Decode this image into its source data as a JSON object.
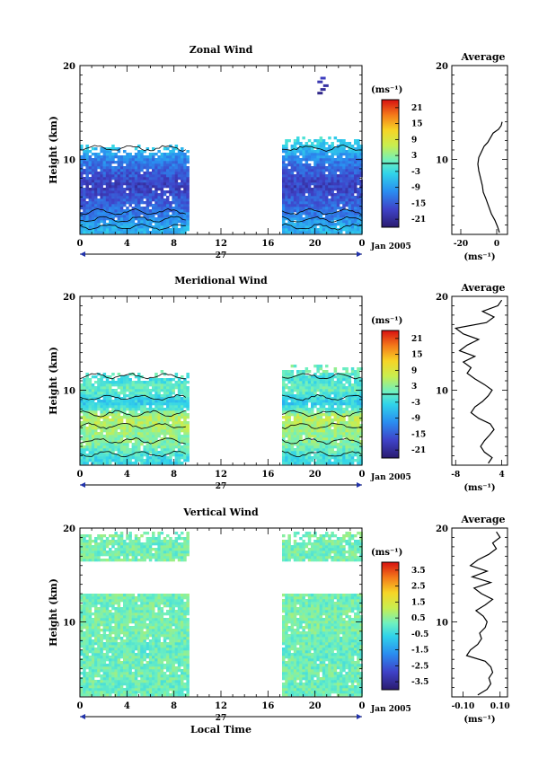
{
  "chart_data": [
    {
      "type": "heatmap",
      "title": "Zonal Wind",
      "ylabel": "Height (km)",
      "ylim": [
        2,
        20
      ],
      "y_ticks": [
        "10",
        "20"
      ],
      "xlim": [
        0,
        24
      ],
      "x_ticks": [
        "0",
        "4",
        "8",
        "12",
        "16",
        "20",
        "0"
      ],
      "x_day_label": "27",
      "x_month_label": "Jan 2005",
      "data_windows": [
        {
          "t_start": 0,
          "t_end": 9.2,
          "h_min": 2.1,
          "h_max": 11.6
        },
        {
          "t_start": 17.2,
          "t_end": 24,
          "h_min": 2.1,
          "h_max": 12.4
        }
      ],
      "mean_profile": {
        "heights": [
          2.5,
          4,
          5.5,
          7,
          8.5,
          10,
          11,
          12
        ],
        "values": [
          -7,
          -12,
          -15,
          -18,
          -15,
          -11,
          -6,
          -3
        ]
      },
      "colorbar": {
        "unit": "(ms⁻¹)",
        "labels": [
          "21",
          "15",
          "9",
          "3",
          "-3",
          "-9",
          "-15",
          "-21"
        ],
        "min": -24,
        "max": 24,
        "marker_value": 0
      },
      "average_profile": {
        "title": "Average",
        "xlabel": "(ms⁻¹)",
        "x_ticks": [
          "-20",
          "0"
        ],
        "xlim": [
          -25,
          6
        ],
        "y_ticks": [
          "10",
          "20"
        ],
        "heights": [
          2.2,
          2.8,
          3.5,
          4.2,
          5,
          5.8,
          6.5,
          7.2,
          8,
          8.8,
          9.5,
          10.2,
          10.8,
          11.4,
          11.8,
          12.3,
          12.8,
          13.2,
          13.6,
          14
        ],
        "values": [
          1.5,
          0.5,
          -1,
          -3,
          -4.5,
          -6,
          -7.5,
          -8,
          -9,
          -10,
          -10.5,
          -10,
          -8.5,
          -7,
          -5,
          -3.5,
          -2,
          1,
          2.5,
          3
        ]
      },
      "upper_fragment": {
        "heights": [
          17.2,
          17.6,
          18,
          18.4,
          18.8
        ],
        "values": [
          -22,
          -21,
          -20,
          -19,
          -18
        ]
      }
    },
    {
      "type": "heatmap",
      "title": "Meridional Wind",
      "ylabel": "Height (km)",
      "ylim": [
        2,
        20
      ],
      "y_ticks": [
        "10",
        "20"
      ],
      "xlim": [
        0,
        24
      ],
      "x_ticks": [
        "0",
        "4",
        "8",
        "12",
        "16",
        "20",
        "0"
      ],
      "x_day_label": "27",
      "x_month_label": "Jan 2005",
      "data_windows": [
        {
          "t_start": 0,
          "t_end": 9.2,
          "h_min": 2.1,
          "h_max": 12.0
        },
        {
          "t_start": 17.2,
          "t_end": 24,
          "h_min": 2.1,
          "h_max": 12.7
        }
      ],
      "mean_profile": {
        "heights": [
          2.5,
          4,
          5.5,
          7,
          8.5,
          10,
          11,
          12
        ],
        "values": [
          -3,
          2,
          4,
          6,
          -5,
          1,
          -2,
          1
        ]
      },
      "colorbar": {
        "unit": "(ms⁻¹)",
        "labels": [
          "21",
          "15",
          "9",
          "3",
          "-3",
          "-9",
          "-15",
          "-21"
        ],
        "min": -24,
        "max": 24,
        "marker_value": 0
      },
      "average_profile": {
        "title": "Average",
        "xlabel": "(ms⁻¹)",
        "x_ticks": [
          "-8",
          "4"
        ],
        "xlim": [
          -9,
          5.5
        ],
        "y_ticks": [
          "10",
          "20"
        ],
        "heights": [
          2.2,
          2.8,
          3.4,
          4,
          4.6,
          5.2,
          5.8,
          6.4,
          7,
          7.6,
          8.2,
          8.8,
          9.4,
          10,
          10.6,
          11.2,
          11.8,
          12.4,
          13,
          13.6,
          14.2,
          14.8,
          15.4,
          16,
          16.6,
          17.2,
          17.8,
          18.4,
          19,
          19.6
        ],
        "values": [
          0.5,
          1.5,
          -0.5,
          -1.5,
          -0.5,
          0.8,
          2,
          1,
          -2,
          -4,
          -3,
          -1,
          0.5,
          1.5,
          -0.5,
          -3,
          -5,
          -4,
          -6,
          -3,
          -7,
          -5,
          -2,
          -6,
          -8,
          0,
          2,
          -1,
          3,
          4
        ]
      }
    },
    {
      "type": "heatmap",
      "title": "Vertical Wind",
      "ylabel": "Height (km)",
      "ylim": [
        2,
        20
      ],
      "y_ticks": [
        "10",
        "20"
      ],
      "xlim": [
        0,
        24
      ],
      "x_ticks": [
        "0",
        "4",
        "8",
        "12",
        "16",
        "20",
        "0"
      ],
      "x_day_label": "27",
      "x_month_label": "Jan 2005",
      "xlabel": "Local Time",
      "data_windows": [
        {
          "t_start": 0,
          "t_end": 9.2,
          "h_min": 2.1,
          "h_max": 19.7
        },
        {
          "t_start": 17.2,
          "t_end": 24,
          "h_min": 2.1,
          "h_max": 19.7
        }
      ],
      "gaps": [
        {
          "h_min": 12.8,
          "h_max": 16.2
        }
      ],
      "mean_profile": {
        "heights": [
          2.5,
          5,
          7,
          9,
          11,
          12,
          16.5,
          18,
          19.5
        ],
        "values": [
          0.15,
          0.2,
          0.1,
          0.3,
          0.25,
          0.2,
          0.25,
          0.2,
          0.3
        ]
      },
      "colorbar": {
        "unit": "(ms⁻¹)",
        "labels": [
          "3.5",
          "2.5",
          "1.5",
          "0.5",
          "-0.5",
          "-1.5",
          "-2.5",
          "-3.5"
        ],
        "min": -4,
        "max": 4
      },
      "average_profile": {
        "title": "Average",
        "xlabel": "(ms⁻¹)",
        "x_ticks": [
          "-0.10",
          "0.10"
        ],
        "xlim": [
          -0.16,
          0.14
        ],
        "y_ticks": [
          "10",
          "20"
        ],
        "heights": [
          2.2,
          2.8,
          3.4,
          4,
          4.6,
          5.2,
          5.8,
          6.4,
          7,
          7.6,
          8.2,
          8.8,
          9.4,
          10,
          10.6,
          11.2,
          11.8,
          12.4,
          13,
          13.6,
          14.2,
          14.8,
          15.4,
          16,
          16.6,
          17.2,
          17.8,
          18.4,
          19,
          19.6
        ],
        "values": [
          -0.02,
          0.03,
          0.05,
          0.04,
          0.06,
          0.05,
          0.02,
          -0.08,
          -0.06,
          -0.02,
          0.0,
          -0.01,
          0.02,
          0.03,
          0.01,
          -0.03,
          0.02,
          0.06,
          0.0,
          -0.04,
          0.05,
          -0.05,
          0.03,
          -0.06,
          -0.02,
          0.04,
          0.08,
          0.06,
          0.1,
          0.08
        ]
      }
    }
  ]
}
